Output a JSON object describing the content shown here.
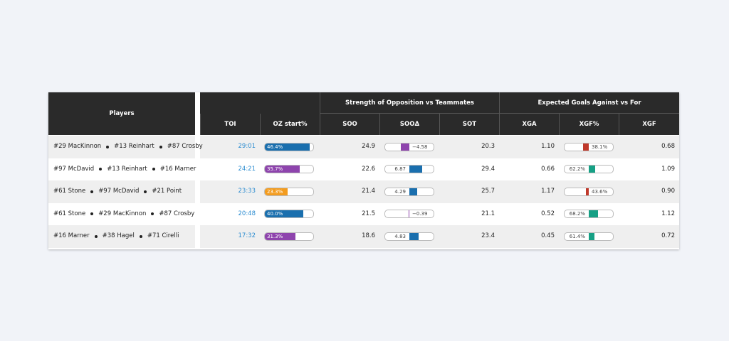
{
  "header": {
    "players": "Players",
    "group_soo": "Strength of Opposition vs Teammates",
    "group_xg": "Expected Goals Against vs For",
    "columns": [
      "TOI",
      "OZ start%",
      "SOO",
      "SOOΔ",
      "SOT",
      "XGA",
      "XGF%",
      "XGF"
    ]
  },
  "table": {
    "rows": [
      {
        "players": [
          "#29 MacKinnon",
          "#13 Reinhart",
          "#87 Crosby"
        ],
        "toi": "29:01",
        "oz": "46.4%",
        "oz_color": "#1a6fae",
        "soo": "24.9",
        "soo_delta": "−4.58",
        "sot": "20.3",
        "xga": "1.10",
        "xgf_pct": "38.1%",
        "xgf": "0.68"
      },
      {
        "players": [
          "#97 McDavid",
          "#13 Reinhart",
          "#16 Marner"
        ],
        "toi": "24:21",
        "oz": "35.7%",
        "oz_color": "#8e44ad",
        "soo": "22.6",
        "soo_delta": "6.87",
        "sot": "29.4",
        "xga": "0.66",
        "xgf_pct": "62.2%",
        "xgf": "1.09"
      },
      {
        "players": [
          "#61 Stone",
          "#97 McDavid",
          "#21 Point"
        ],
        "toi": "23:33",
        "oz": "23.3%",
        "oz_color": "#f39c1f",
        "soo": "21.4",
        "soo_delta": "4.29",
        "sot": "25.7",
        "xga": "1.17",
        "xgf_pct": "43.6%",
        "xgf": "0.90"
      },
      {
        "players": [
          "#61 Stone",
          "#29 MacKinnon",
          "#87 Crosby"
        ],
        "toi": "20:48",
        "oz": "40.0%",
        "oz_color": "#1a6fae",
        "soo": "21.5",
        "soo_delta": "−0.39",
        "sot": "21.1",
        "xga": "0.52",
        "xgf_pct": "68.2%",
        "xgf": "1.12"
      },
      {
        "players": [
          "#16 Marner",
          "#38 Hagel",
          "#71 Cirelli"
        ],
        "toi": "17:32",
        "oz": "31.3%",
        "oz_color": "#8e44ad",
        "soo": "18.6",
        "soo_delta": "4.83",
        "sot": "23.4",
        "xga": "0.45",
        "xgf_pct": "61.4%",
        "xgf": "0.72"
      }
    ]
  }
}
